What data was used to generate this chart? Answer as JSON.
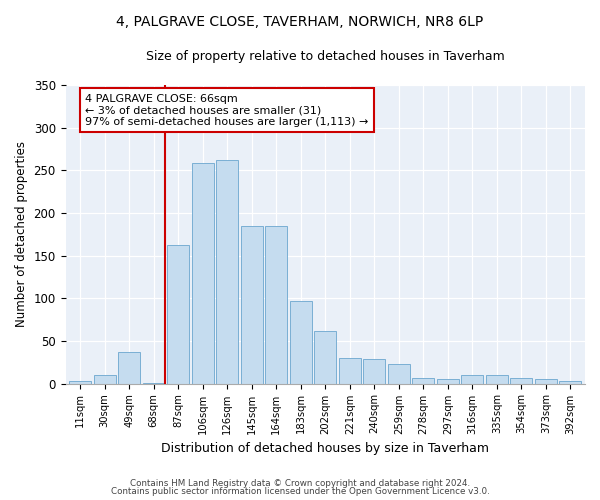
{
  "title": "4, PALGRAVE CLOSE, TAVERHAM, NORWICH, NR8 6LP",
  "subtitle": "Size of property relative to detached houses in Taverham",
  "xlabel": "Distribution of detached houses by size in Taverham",
  "ylabel": "Number of detached properties",
  "categories": [
    "11sqm",
    "30sqm",
    "49sqm",
    "68sqm",
    "87sqm",
    "106sqm",
    "126sqm",
    "145sqm",
    "164sqm",
    "183sqm",
    "202sqm",
    "221sqm",
    "240sqm",
    "259sqm",
    "278sqm",
    "297sqm",
    "316sqm",
    "335sqm",
    "354sqm",
    "373sqm",
    "392sqm"
  ],
  "values": [
    3,
    10,
    37,
    1,
    163,
    258,
    262,
    185,
    185,
    97,
    62,
    30,
    29,
    23,
    6,
    5,
    10,
    10,
    7,
    5,
    3
  ],
  "bar_color": "#c5dcef",
  "bar_edge_color": "#7aafd4",
  "vline_x_index": 3,
  "vline_color": "#cc0000",
  "annotation_text": "4 PALGRAVE CLOSE: 66sqm\n← 3% of detached houses are smaller (31)\n97% of semi-detached houses are larger (1,113) →",
  "annotation_box_color": "#cc0000",
  "ylim": [
    0,
    350
  ],
  "yticks": [
    0,
    50,
    100,
    150,
    200,
    250,
    300,
    350
  ],
  "bg_color": "#eaf0f8",
  "footer_line1": "Contains HM Land Registry data © Crown copyright and database right 2024.",
  "footer_line2": "Contains public sector information licensed under the Open Government Licence v3.0.",
  "title_fontsize": 10,
  "subtitle_fontsize": 9
}
